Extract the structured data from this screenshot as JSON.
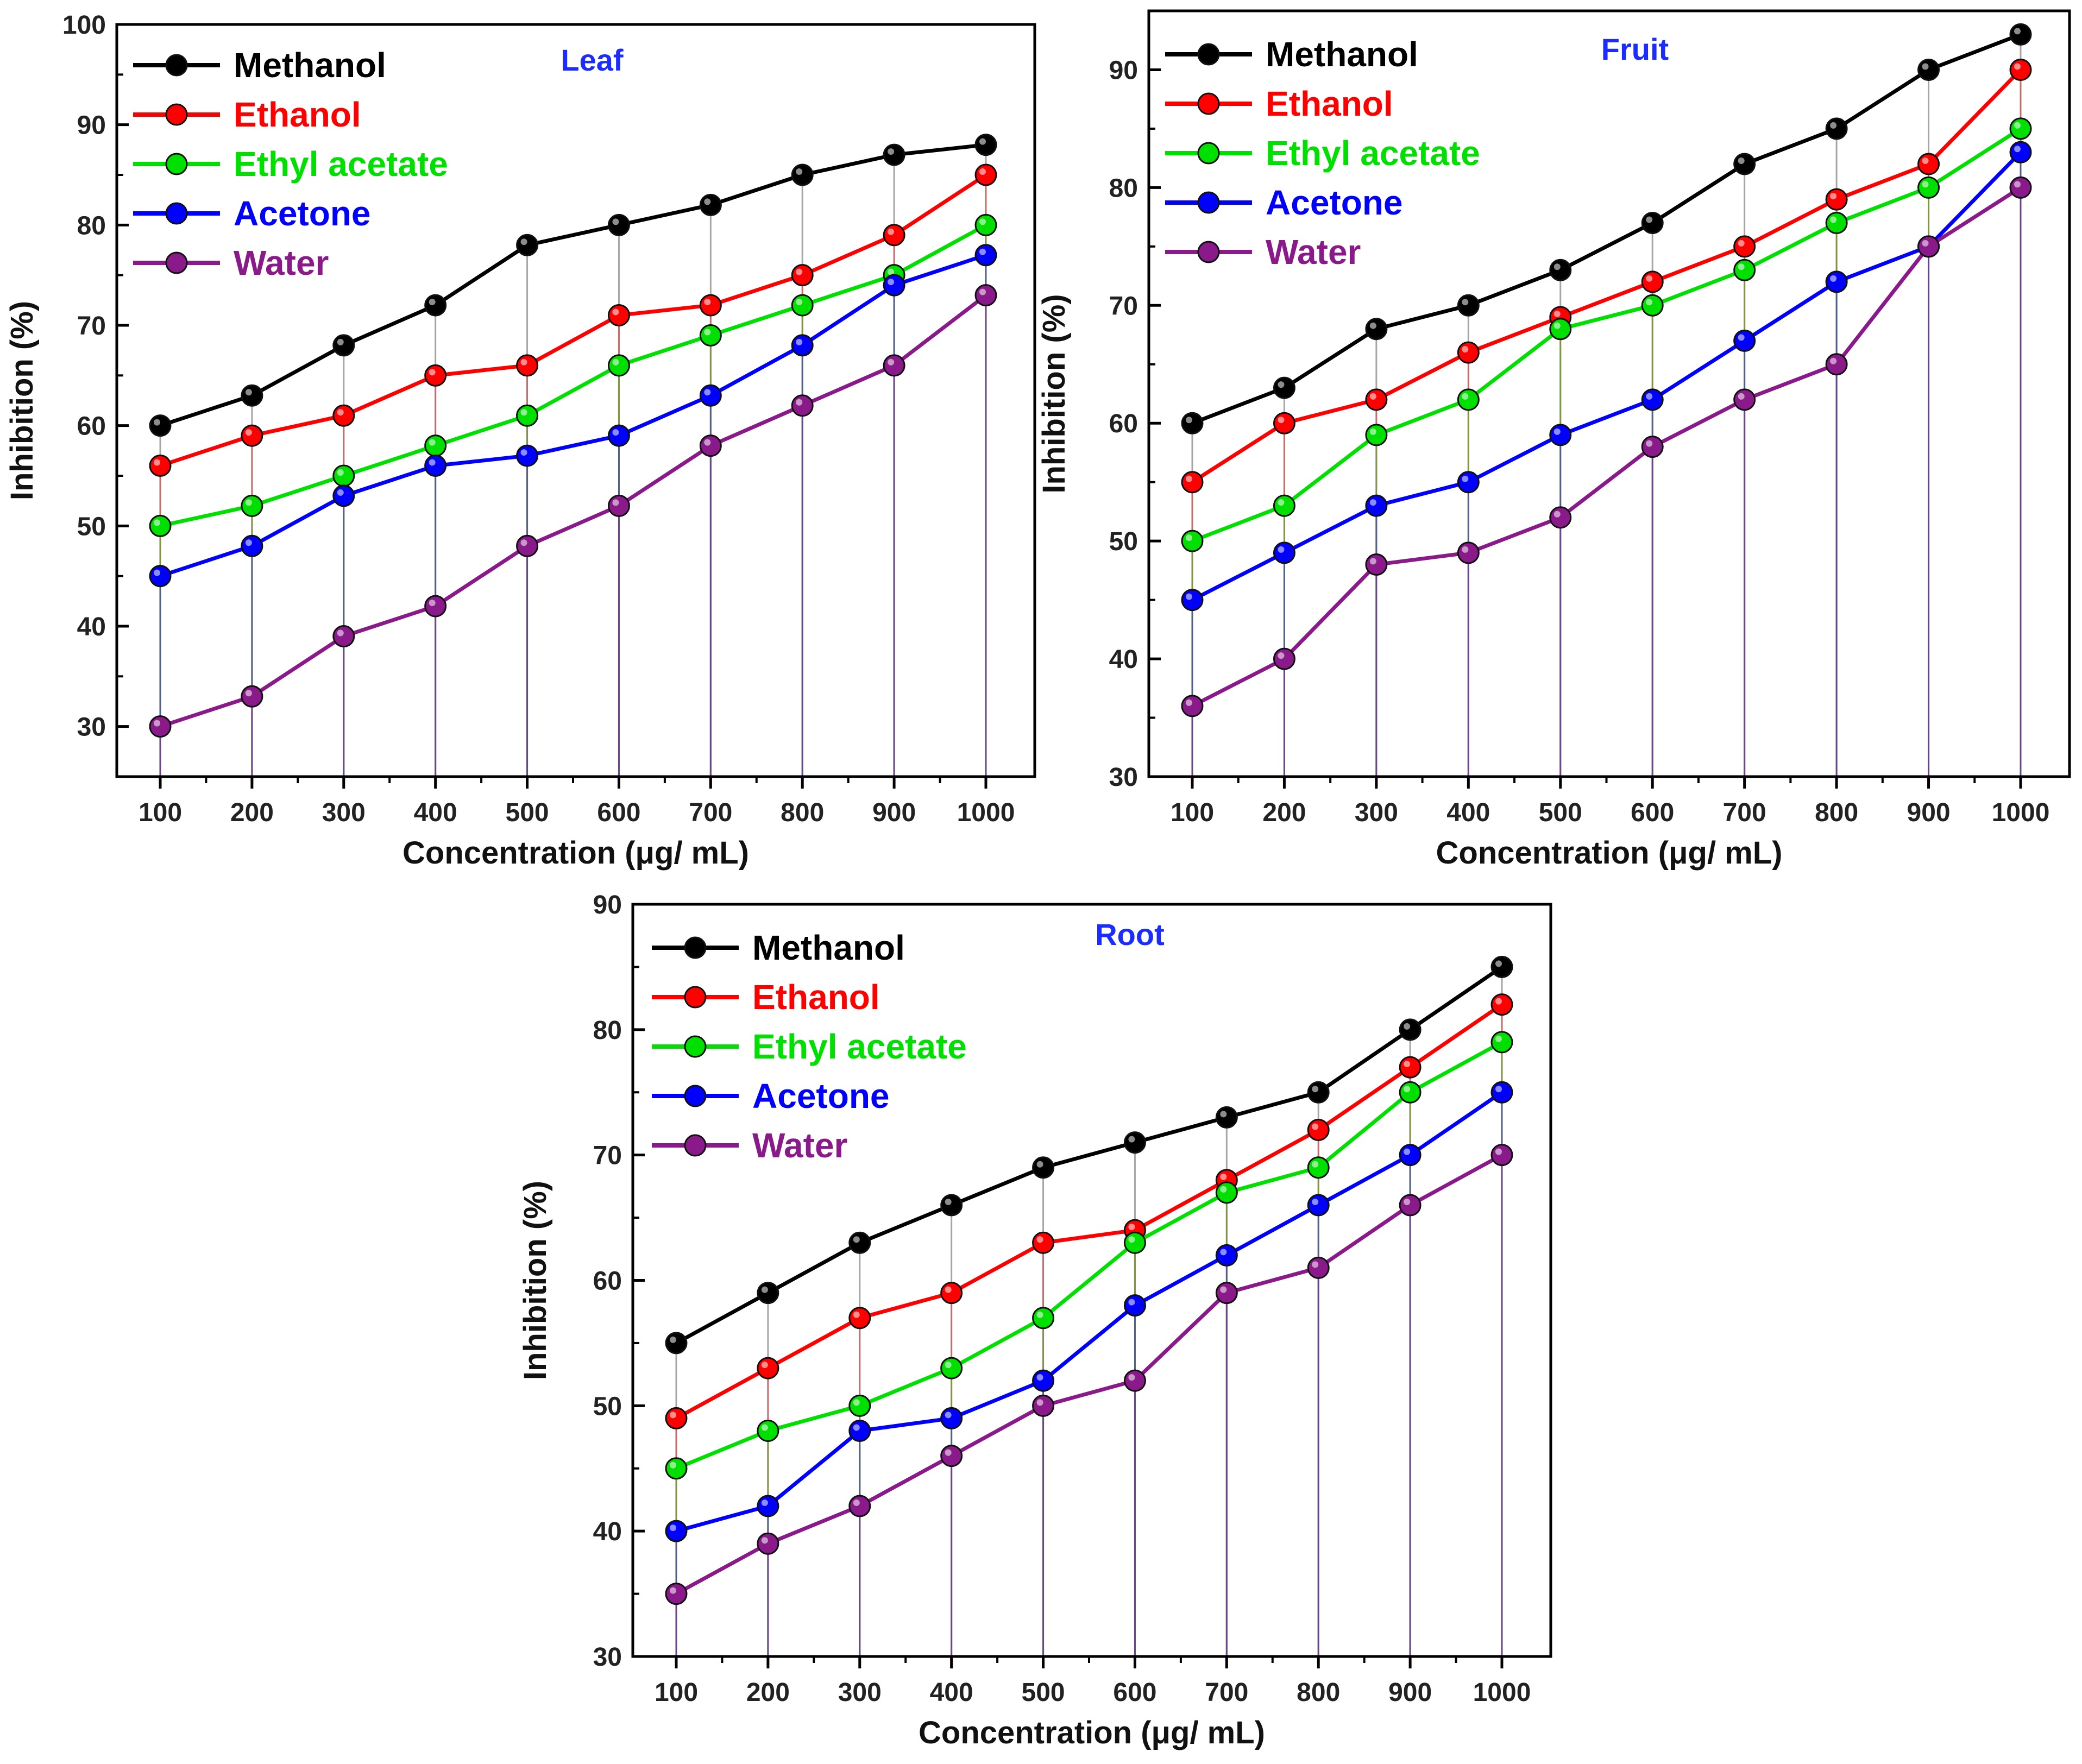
{
  "colors": {
    "methanol": "#000000",
    "ethanol": "#ff0000",
    "ethyl_acetate": "#00e000",
    "acetone": "#0000ff",
    "water": "#8a1a8a",
    "title": "#1a2cff"
  },
  "chart_data": [
    {
      "type": "line",
      "panel_title": "Leaf",
      "xlabel": "Concentration (μg/ mL)",
      "ylabel": "Inhibition (%)",
      "x": [
        100,
        200,
        300,
        400,
        500,
        600,
        700,
        800,
        900,
        1000
      ],
      "xticks": [
        "100",
        "200",
        "300",
        "400",
        "500",
        "600",
        "700",
        "800",
        "900",
        "1000"
      ],
      "ylim": [
        25,
        100
      ],
      "yticks": [
        30,
        40,
        50,
        60,
        70,
        80,
        90,
        100
      ],
      "grid": false,
      "legend_position": "top-left",
      "series": [
        {
          "name": "Methanol",
          "color_key": "methanol",
          "values": [
            60,
            63,
            68,
            72,
            78,
            80,
            82,
            85,
            87,
            88
          ]
        },
        {
          "name": "Ethanol",
          "color_key": "ethanol",
          "values": [
            56,
            59,
            61,
            65,
            66,
            71,
            72,
            75,
            79,
            85
          ]
        },
        {
          "name": "Ethyl acetate",
          "color_key": "ethyl_acetate",
          "values": [
            50,
            52,
            55,
            58,
            61,
            66,
            69,
            72,
            75,
            80
          ]
        },
        {
          "name": "Acetone",
          "color_key": "acetone",
          "values": [
            45,
            48,
            53,
            56,
            57,
            59,
            63,
            68,
            74,
            77
          ]
        },
        {
          "name": "Water",
          "color_key": "water",
          "values": [
            30,
            33,
            39,
            42,
            48,
            52,
            58,
            62,
            66,
            73
          ]
        }
      ]
    },
    {
      "type": "line",
      "panel_title": "Fruit",
      "xlabel": "Concentration (μg/ mL)",
      "ylabel": "Inhibition (%)",
      "x": [
        100,
        200,
        300,
        400,
        500,
        600,
        700,
        800,
        900,
        1000
      ],
      "xticks": [
        "100",
        "200",
        "300",
        "400",
        "500",
        "600",
        "700",
        "800",
        "900",
        "1000"
      ],
      "ylim": [
        30,
        95
      ],
      "yticks": [
        30,
        40,
        50,
        60,
        70,
        80,
        90
      ],
      "grid": false,
      "legend_position": "top-left",
      "series": [
        {
          "name": "Methanol",
          "color_key": "methanol",
          "values": [
            60,
            63,
            68,
            70,
            73,
            77,
            82,
            85,
            90,
            93
          ]
        },
        {
          "name": "Ethanol",
          "color_key": "ethanol",
          "values": [
            55,
            60,
            62,
            66,
            69,
            72,
            75,
            79,
            82,
            90
          ]
        },
        {
          "name": "Ethyl acetate",
          "color_key": "ethyl_acetate",
          "values": [
            50,
            53,
            59,
            62,
            68,
            70,
            73,
            77,
            80,
            85
          ]
        },
        {
          "name": "Acetone",
          "color_key": "acetone",
          "values": [
            45,
            49,
            53,
            55,
            59,
            62,
            67,
            72,
            75,
            83
          ]
        },
        {
          "name": "Water",
          "color_key": "water",
          "values": [
            36,
            40,
            48,
            49,
            52,
            58,
            62,
            65,
            75,
            80
          ]
        }
      ]
    },
    {
      "type": "line",
      "panel_title": "Root",
      "xlabel": "Concentration (μg/ mL)",
      "ylabel": "Inhibition (%)",
      "x": [
        100,
        200,
        300,
        400,
        500,
        600,
        700,
        800,
        900,
        1000
      ],
      "xticks": [
        "100",
        "200",
        "300",
        "400",
        "500",
        "600",
        "700",
        "800",
        "900",
        "1000"
      ],
      "ylim": [
        30,
        90
      ],
      "yticks": [
        30,
        40,
        50,
        60,
        70,
        80,
        90
      ],
      "grid": false,
      "legend_position": "top-left",
      "series": [
        {
          "name": "Methanol",
          "color_key": "methanol",
          "values": [
            55,
            59,
            63,
            66,
            69,
            71,
            73,
            75,
            80,
            85
          ]
        },
        {
          "name": "Ethanol",
          "color_key": "ethanol",
          "values": [
            49,
            53,
            57,
            59,
            63,
            64,
            68,
            72,
            77,
            82
          ]
        },
        {
          "name": "Ethyl acetate",
          "color_key": "ethyl_acetate",
          "values": [
            45,
            48,
            50,
            53,
            57,
            63,
            67,
            69,
            75,
            79
          ]
        },
        {
          "name": "Acetone",
          "color_key": "acetone",
          "values": [
            40,
            42,
            48,
            49,
            52,
            58,
            62,
            66,
            70,
            75
          ]
        },
        {
          "name": "Water",
          "color_key": "water",
          "values": [
            35,
            39,
            42,
            46,
            50,
            52,
            59,
            61,
            66,
            70
          ]
        }
      ]
    }
  ]
}
